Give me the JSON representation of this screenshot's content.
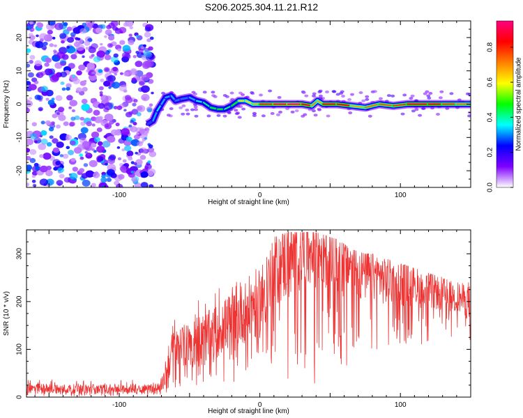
{
  "figure": {
    "title": "S206.2025.304.11.21.R12"
  },
  "chart_data": [
    {
      "type": "heatmap",
      "title": "",
      "xlabel": "Height of straight line (km)",
      "ylabel": "Frequency (Hz)",
      "xlim": [
        -166,
        150
      ],
      "ylim": [
        -25,
        25
      ],
      "xticks": [
        -100,
        0,
        100
      ],
      "yticks": [
        -20,
        -10,
        0,
        10,
        20
      ],
      "colorbar": {
        "label": "Normalized spectral amplitude",
        "range": [
          0.0,
          0.95
        ],
        "ticks": [
          0.0,
          0.2,
          0.4,
          0.6,
          0.8
        ],
        "colors": [
          "#ffffff",
          "#7f00ff",
          "#0000ff",
          "#00ffff",
          "#00ff00",
          "#ffff00",
          "#ff7f00",
          "#ff0000",
          "#ff007f"
        ]
      },
      "noise_region": {
        "x": [
          -166,
          -76
        ],
        "y": [
          -25,
          25
        ],
        "amplitude": [
          0.05,
          0.35
        ]
      },
      "ridge": [
        {
          "x": -80,
          "y": -6,
          "amp": 0.25
        },
        {
          "x": -76,
          "y": -5,
          "amp": 0.3
        },
        {
          "x": -73,
          "y": -2,
          "amp": 0.35
        },
        {
          "x": -70,
          "y": 0,
          "amp": 0.35
        },
        {
          "x": -67,
          "y": 2,
          "amp": 0.3
        },
        {
          "x": -63,
          "y": 2.5,
          "amp": 0.35
        },
        {
          "x": -60,
          "y": 1,
          "amp": 0.3
        },
        {
          "x": -56,
          "y": 1.5,
          "amp": 0.3
        },
        {
          "x": -50,
          "y": 2,
          "amp": 0.3
        },
        {
          "x": -45,
          "y": 1,
          "amp": 0.35
        },
        {
          "x": -40,
          "y": 0.5,
          "amp": 0.4
        },
        {
          "x": -35,
          "y": -1,
          "amp": 0.45
        },
        {
          "x": -30,
          "y": -1.5,
          "amp": 0.5
        },
        {
          "x": -25,
          "y": -1.5,
          "amp": 0.45
        },
        {
          "x": -20,
          "y": -0.5,
          "amp": 0.4
        },
        {
          "x": -15,
          "y": 1,
          "amp": 0.55
        },
        {
          "x": -10,
          "y": 1,
          "amp": 0.6
        },
        {
          "x": -5,
          "y": 0,
          "amp": 0.65
        },
        {
          "x": 0,
          "y": 0,
          "amp": 0.7
        },
        {
          "x": 10,
          "y": 0,
          "amp": 0.9
        },
        {
          "x": 20,
          "y": 0,
          "amp": 0.95
        },
        {
          "x": 30,
          "y": 0,
          "amp": 0.95
        },
        {
          "x": 37,
          "y": -0.5,
          "amp": 0.8
        },
        {
          "x": 41,
          "y": 1,
          "amp": 0.6
        },
        {
          "x": 45,
          "y": 0,
          "amp": 0.75
        },
        {
          "x": 55,
          "y": 0,
          "amp": 0.95
        },
        {
          "x": 65,
          "y": -0.5,
          "amp": 0.7
        },
        {
          "x": 75,
          "y": -1,
          "amp": 0.65
        },
        {
          "x": 85,
          "y": 0,
          "amp": 0.8
        },
        {
          "x": 95,
          "y": -0.5,
          "amp": 0.7
        },
        {
          "x": 105,
          "y": 0,
          "amp": 0.85
        },
        {
          "x": 120,
          "y": 0,
          "amp": 0.9
        },
        {
          "x": 130,
          "y": 0,
          "amp": 0.8
        },
        {
          "x": 140,
          "y": 0,
          "amp": 0.75
        },
        {
          "x": 150,
          "y": 0,
          "amp": 0.7
        }
      ]
    },
    {
      "type": "line",
      "title": "",
      "xlabel": "Height of straight line (km)",
      "ylabel": "SNR (10 * v/v)",
      "xlim": [
        -166,
        150
      ],
      "ylim": [
        0,
        350
      ],
      "xticks": [
        -100,
        0,
        100
      ],
      "yticks": [
        0,
        100,
        200,
        300
      ],
      "color": "#ee3333",
      "series": [
        {
          "name": "SNR",
          "x": [
            -166,
            -150,
            -130,
            -110,
            -90,
            -80,
            -72,
            -68,
            -65,
            -62,
            -58,
            -55,
            -50,
            -45,
            -40,
            -35,
            -30,
            -25,
            -20,
            -15,
            -10,
            -5,
            0,
            5,
            10,
            15,
            20,
            25,
            30,
            35,
            40,
            45,
            50,
            55,
            60,
            65,
            70,
            75,
            80,
            85,
            90,
            95,
            100,
            105,
            110,
            115,
            120,
            125,
            130,
            135,
            140,
            145,
            150
          ],
          "mean": [
            18,
            18,
            17,
            17,
            18,
            18,
            20,
            35,
            70,
            95,
            100,
            105,
            110,
            120,
            125,
            130,
            140,
            150,
            160,
            170,
            180,
            190,
            200,
            230,
            260,
            275,
            290,
            295,
            300,
            300,
            300,
            295,
            290,
            285,
            280,
            270,
            265,
            260,
            255,
            250,
            245,
            245,
            240,
            235,
            230,
            225,
            222,
            220,
            215,
            210,
            210,
            205,
            200
          ],
          "peak": [
            40,
            38,
            38,
            38,
            36,
            38,
            40,
            70,
            130,
            190,
            180,
            185,
            195,
            210,
            215,
            225,
            230,
            240,
            250,
            260,
            280,
            300,
            320,
            325,
            335,
            340,
            345,
            345,
            345,
            345,
            345,
            340,
            335,
            330,
            320,
            310,
            305,
            300,
            300,
            290,
            290,
            285,
            280,
            275,
            270,
            265,
            260,
            255,
            255,
            245,
            245,
            240,
            240
          ],
          "floor": [
            2,
            2,
            2,
            2,
            2,
            2,
            2,
            5,
            10,
            15,
            20,
            20,
            20,
            25,
            25,
            30,
            30,
            30,
            30,
            30,
            40,
            40,
            40,
            50,
            60,
            60,
            20,
            60,
            60,
            60,
            20,
            80,
            80,
            80,
            40,
            80,
            90,
            30,
            100,
            100,
            90,
            100,
            100,
            110,
            110,
            110,
            110,
            120,
            120,
            120,
            120,
            120,
            60
          ]
        }
      ]
    }
  ]
}
